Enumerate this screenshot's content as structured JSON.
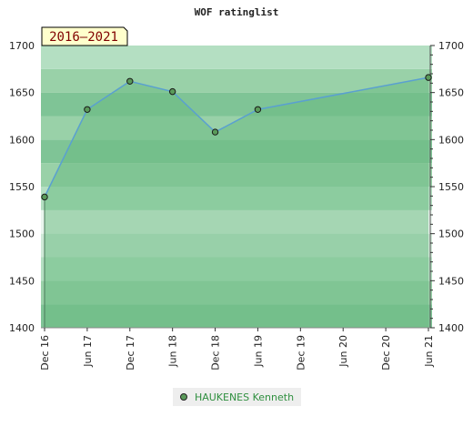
{
  "chart_data": {
    "type": "area",
    "title": "WOF ratinglist",
    "period_label": "2016–2021",
    "x_tick_labels": [
      "Dec 16",
      "Jun 17",
      "Dec 17",
      "Jun 18",
      "Dec 18",
      "Jun 19",
      "Dec 19",
      "Jun 20",
      "Dec 20",
      "Jun 21"
    ],
    "ylim": [
      1400,
      1700
    ],
    "y_ticks": [
      1400,
      1450,
      1500,
      1550,
      1600,
      1650,
      1700
    ],
    "series": [
      {
        "name": "HAUKENES Kenneth",
        "color": "#5aa0d0",
        "points": [
          {
            "x": "Dec 16",
            "y": 1539
          },
          {
            "x": "Jun 17",
            "y": 1632
          },
          {
            "x": "Dec 17",
            "y": 1662
          },
          {
            "x": "Jun 18",
            "y": 1651
          },
          {
            "x": "Dec 18",
            "y": 1608
          },
          {
            "x": "Jun 19",
            "y": 1632
          },
          {
            "x": "Jun 21",
            "y": 1666
          }
        ]
      }
    ],
    "background_band_colors": [
      "#7fc496",
      "#99d1a8",
      "#b4dfc2",
      "#cfe9d7",
      "#eaf5ee"
    ],
    "area_color": "#6cbb84",
    "grid": false,
    "legend_position": "bottom"
  }
}
